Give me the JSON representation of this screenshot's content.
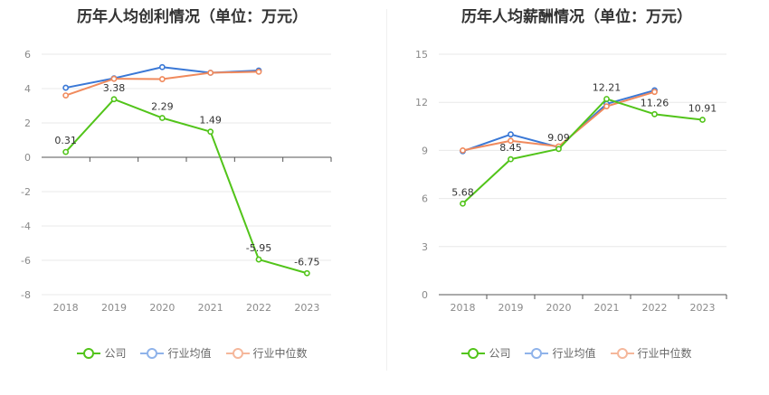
{
  "colors": {
    "company": "#52c41a",
    "industry_avg": "#3a78d6",
    "industry_median": "#f08a5d"
  },
  "legend": {
    "company": "公司",
    "industry_avg": "行业均值",
    "industry_median": "行业中位数"
  },
  "chart_data": [
    {
      "type": "line",
      "title": "历年人均创利情况（单位：万元）",
      "categories": [
        "2018",
        "2019",
        "2020",
        "2021",
        "2022",
        "2023"
      ],
      "ylim": [
        -8,
        6
      ],
      "yticks": [
        6,
        4,
        2,
        0,
        -2,
        -4,
        -6,
        -8
      ],
      "grid": true,
      "legend_position": "bottom",
      "series": [
        {
          "name": "公司",
          "key": "company",
          "values": [
            0.31,
            3.38,
            2.29,
            1.49,
            -5.95,
            -6.75
          ],
          "labels": [
            "0.31",
            "3.38",
            "2.29",
            "1.49",
            "-5.95",
            "-6.75"
          ]
        },
        {
          "name": "行业均值",
          "key": "industry_avg",
          "values": [
            4.05,
            4.6,
            5.25,
            4.92,
            5.05,
            null
          ]
        },
        {
          "name": "行业中位数",
          "key": "industry_median",
          "values": [
            3.6,
            4.57,
            4.55,
            4.92,
            4.98,
            null
          ]
        }
      ]
    },
    {
      "type": "line",
      "title": "历年人均薪酬情况（单位：万元）",
      "categories": [
        "2018",
        "2019",
        "2020",
        "2021",
        "2022",
        "2023"
      ],
      "ylim": [
        0,
        15
      ],
      "yticks": [
        15,
        12,
        9,
        6,
        3,
        0
      ],
      "grid": true,
      "legend_position": "bottom",
      "series": [
        {
          "name": "公司",
          "key": "company",
          "values": [
            5.68,
            8.45,
            9.09,
            12.21,
            11.26,
            10.91
          ],
          "labels": [
            "5.68",
            "8.45",
            "9.09",
            "12.21",
            "11.26",
            "10.91"
          ]
        },
        {
          "name": "行业均值",
          "key": "industry_avg",
          "values": [
            8.95,
            10.0,
            9.2,
            11.9,
            12.75,
            null
          ]
        },
        {
          "name": "行业中位数",
          "key": "industry_median",
          "values": [
            9.0,
            9.6,
            9.25,
            11.75,
            12.65,
            null
          ]
        }
      ]
    }
  ]
}
